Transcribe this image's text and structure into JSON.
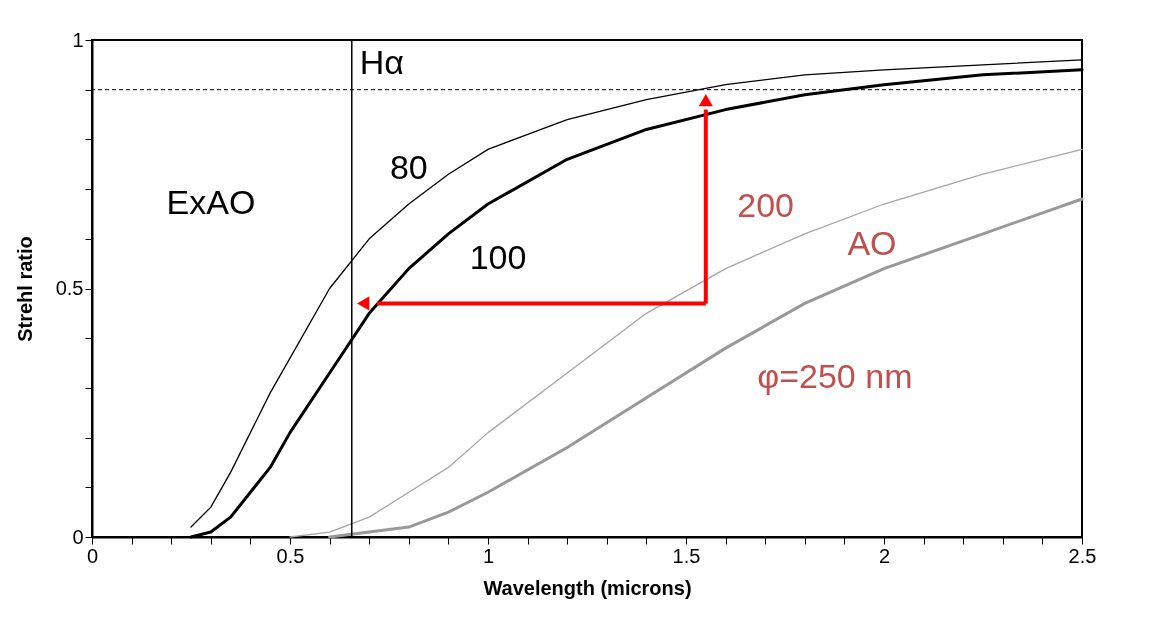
{
  "chart_data": {
    "type": "line",
    "xlabel": "Wavelength (microns)",
    "ylabel": "Strehl ratio",
    "xlim": [
      0,
      2.5
    ],
    "ylim": [
      0,
      1
    ],
    "xticks": [
      0,
      {
        "value": 0.1,
        "label": null
      },
      {
        "value": 0.2,
        "label": null
      },
      {
        "value": 0.3,
        "label": null
      },
      {
        "value": 0.4,
        "label": null
      },
      0.5,
      {
        "value": 0.6,
        "label": null
      },
      {
        "value": 0.7,
        "label": null
      },
      {
        "value": 0.8,
        "label": null
      },
      {
        "value": 0.9,
        "label": null
      },
      1,
      {
        "value": 1.1,
        "label": null
      },
      {
        "value": 1.2,
        "label": null
      },
      {
        "value": 1.3,
        "label": null
      },
      {
        "value": 1.4,
        "label": null
      },
      1.5,
      {
        "value": 1.6,
        "label": null
      },
      {
        "value": 1.7,
        "label": null
      },
      {
        "value": 1.8,
        "label": null
      },
      {
        "value": 1.9,
        "label": null
      },
      2,
      {
        "value": 2.1,
        "label": null
      },
      {
        "value": 2.2,
        "label": null
      },
      {
        "value": 2.3,
        "label": null
      },
      {
        "value": 2.4,
        "label": null
      },
      2.5
    ],
    "yticks": [
      0,
      {
        "value": 0.1,
        "label": null
      },
      {
        "value": 0.2,
        "label": null
      },
      {
        "value": 0.3,
        "label": null
      },
      {
        "value": 0.4,
        "label": null
      },
      0.5,
      {
        "value": 0.6,
        "label": null
      },
      {
        "value": 0.7,
        "label": null
      },
      {
        "value": 0.8,
        "label": null
      },
      {
        "value": 0.9,
        "label": null
      },
      1
    ],
    "grid": false,
    "legend": false,
    "marker": "none",
    "line_style": "solid",
    "series": [
      {
        "name": "80",
        "color": "#000000",
        "x": [
          0.25,
          0.3,
          0.35,
          0.4,
          0.45,
          0.5,
          0.6,
          0.7,
          0.8,
          0.9,
          1.0,
          1.2,
          1.4,
          1.6,
          1.8,
          2.0,
          2.25,
          2.5
        ],
        "values": [
          0.02,
          0.06,
          0.13,
          0.21,
          0.29,
          0.36,
          0.5,
          0.6,
          0.67,
          0.73,
          0.78,
          0.84,
          0.88,
          0.91,
          0.93,
          0.94,
          0.95,
          0.96
        ]
      },
      {
        "name": "100",
        "color": "#000000",
        "x": [
          0.25,
          0.3,
          0.35,
          0.4,
          0.45,
          0.5,
          0.6,
          0.7,
          0.8,
          0.9,
          1.0,
          1.2,
          1.4,
          1.6,
          1.8,
          2.0,
          2.25,
          2.5
        ],
        "values": [
          0.0,
          0.01,
          0.04,
          0.09,
          0.14,
          0.21,
          0.33,
          0.45,
          0.54,
          0.61,
          0.67,
          0.76,
          0.82,
          0.86,
          0.89,
          0.91,
          0.93,
          0.94
        ]
      },
      {
        "name": "200",
        "color": "#a6a6a6",
        "x": [
          0.5,
          0.6,
          0.7,
          0.8,
          0.9,
          1.0,
          1.2,
          1.4,
          1.6,
          1.8,
          2.0,
          2.25,
          2.5
        ],
        "values": [
          0.0,
          0.01,
          0.04,
          0.09,
          0.14,
          0.21,
          0.33,
          0.45,
          0.54,
          0.61,
          0.67,
          0.73,
          0.78
        ]
      },
      {
        "name": "φ=250 nm",
        "color": "#999999",
        "x": [
          0.6,
          0.7,
          0.8,
          0.9,
          1.0,
          1.2,
          1.4,
          1.6,
          1.8,
          2.0,
          2.25,
          2.5
        ],
        "values": [
          0.0,
          0.01,
          0.02,
          0.05,
          0.09,
          0.18,
          0.28,
          0.38,
          0.47,
          0.54,
          0.61,
          0.68
        ]
      }
    ],
    "ref_lines": [
      {
        "axis": "x",
        "value": 0.656,
        "label": "Hα",
        "color": "#000000",
        "line_style": "solid"
      },
      {
        "axis": "y",
        "value": 0.9,
        "label": null,
        "color": "#000000",
        "line_style": "dashed"
      }
    ],
    "annotations": [
      "ExAO",
      "AO"
    ]
  }
}
